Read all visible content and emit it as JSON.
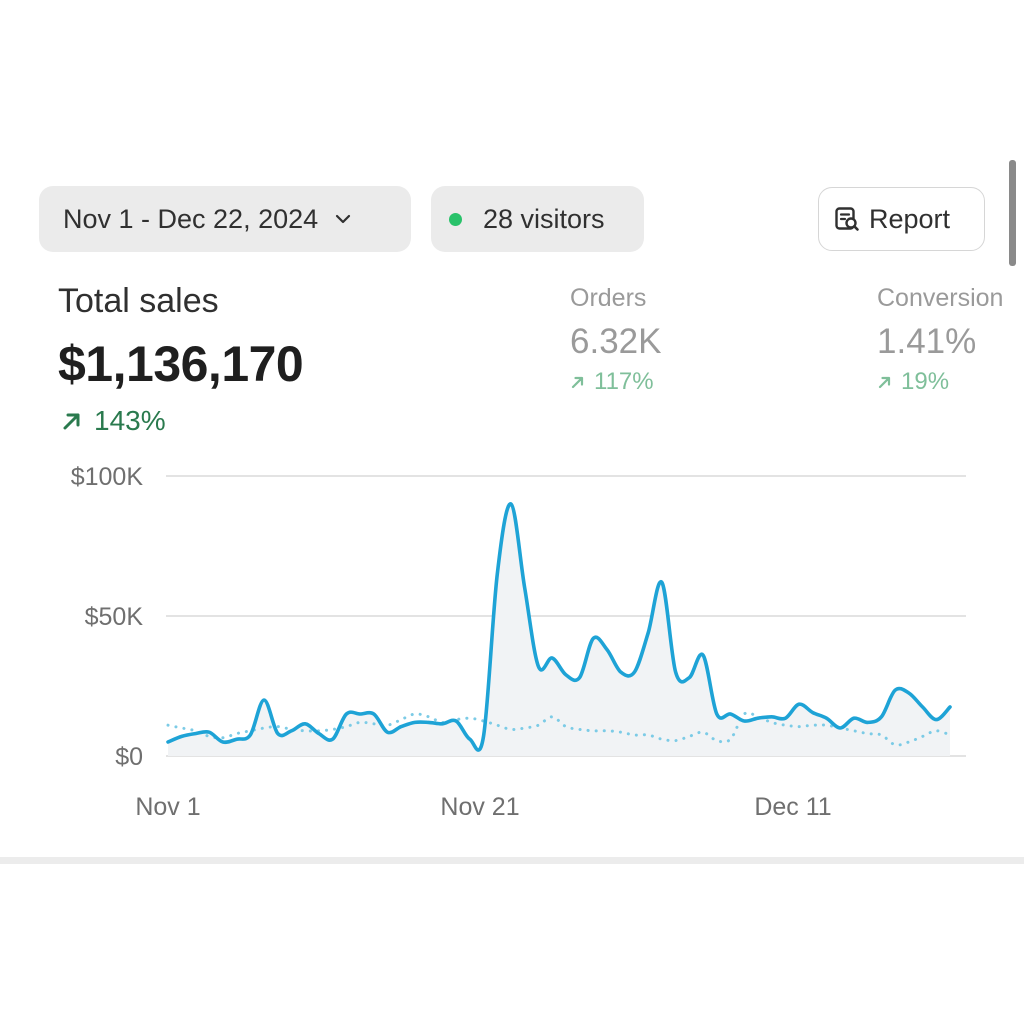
{
  "filters": {
    "date_range": "Nov 1 - Dec 22, 2024",
    "visitors": "28 visitors",
    "visitors_dot_color": "#29c26a",
    "report_label": "Report",
    "report_icon": "report-search-icon"
  },
  "metrics": {
    "total_sales": {
      "label": "Total sales",
      "value": "$1,136,170",
      "change": "143%",
      "change_color": "#2a7a4e"
    },
    "orders": {
      "label": "Orders",
      "value": "6.32K",
      "change": "117%"
    },
    "conversion": {
      "label": "Conversion",
      "value": "1.41%",
      "change": "19%"
    }
  },
  "chart_data": {
    "type": "line",
    "x_ticks": [
      "Nov 1",
      "Nov 21",
      "Dec 11"
    ],
    "y_ticks": [
      "$100K",
      "$50K",
      "$0"
    ],
    "ylim": [
      0,
      100000
    ],
    "grid": true,
    "series": [
      {
        "style": "solid",
        "color": "#1ea3d6",
        "values": [
          5000,
          7000,
          8000,
          8500,
          5000,
          6000,
          7500,
          20000,
          8000,
          9000,
          11500,
          8000,
          6000,
          15000,
          15000,
          15000,
          8500,
          10500,
          12000,
          12000,
          11500,
          12500,
          6000,
          7000,
          65000,
          90000,
          60000,
          32000,
          35000,
          29000,
          28000,
          42000,
          38000,
          30000,
          30000,
          44000,
          62000,
          30000,
          28000,
          36000,
          15000,
          15000,
          12500,
          13500,
          14000,
          13500,
          18500,
          15500,
          13500,
          10000,
          13500,
          12000,
          14000,
          23500,
          22500,
          17500,
          13000,
          17500
        ]
      },
      {
        "style": "dotted",
        "color": "#7ccbe6",
        "values": [
          11000,
          10000,
          9000,
          7000,
          6500,
          8000,
          9000,
          10000,
          10500,
          9500,
          9000,
          9000,
          9500,
          10500,
          12000,
          11500,
          11000,
          13000,
          15000,
          14000,
          12000,
          13000,
          13500,
          12500,
          11000,
          9500,
          10000,
          11000,
          14000,
          10500,
          9500,
          9000,
          9000,
          8500,
          7500,
          7500,
          6000,
          5500,
          7000,
          8500,
          5500,
          6000,
          15000,
          14000,
          12000,
          11000,
          10500,
          11000,
          11000,
          10000,
          9000,
          8000,
          7500,
          4000,
          5000,
          7000,
          9000,
          7500
        ]
      }
    ]
  }
}
